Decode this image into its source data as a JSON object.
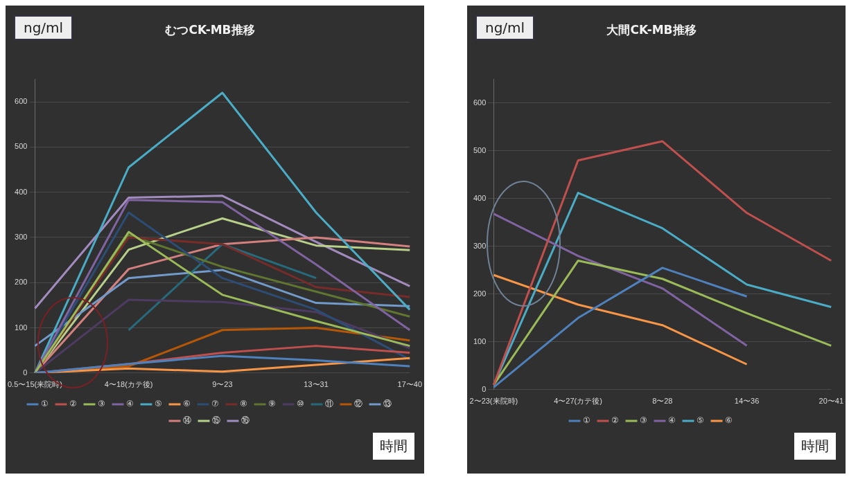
{
  "chart_data": [
    {
      "type": "line",
      "title": "むつCK-MB推移",
      "xlabel": "時間",
      "ylabel": "ng/ml",
      "categories": [
        "0.5〜15(来院時)",
        "4〜18(カテ後)",
        "9〜23",
        "13〜31",
        "17〜40"
      ],
      "ylim": [
        0,
        650
      ],
      "yticks": [
        0,
        100,
        200,
        300,
        400,
        500,
        600
      ],
      "grid": "y",
      "legend": "bottom",
      "marker": "none",
      "series": [
        {
          "name": "①",
          "color": "#4f81bd",
          "values": [
            0,
            20,
            38,
            28,
            15
          ]
        },
        {
          "name": "②",
          "color": "#c0504d",
          "values": [
            0,
            20,
            45,
            60,
            45
          ]
        },
        {
          "name": "③",
          "color": "#9bbb59",
          "values": [
            0,
            312,
            173,
            115,
            60
          ]
        },
        {
          "name": "④",
          "color": "#8064a2",
          "values": [
            0,
            383,
            378,
            240,
            95
          ]
        },
        {
          "name": "⑤",
          "color": "#4bacc6",
          "values": [
            0,
            455,
            620,
            355,
            140
          ]
        },
        {
          "name": "⑥",
          "color": "#f79646",
          "values": [
            0,
            10,
            3,
            18,
            33
          ]
        },
        {
          "name": "⑦",
          "color": "#2c4d75",
          "values": [
            0,
            355,
            210,
            140,
            30
          ]
        },
        {
          "name": "⑧",
          "color": "#772c2a",
          "values": [
            0,
            300,
            285,
            190,
            168
          ]
        },
        {
          "name": "⑨",
          "color": "#5f7530",
          "values": [
            0,
            305,
            235,
            180,
            125
          ]
        },
        {
          "name": "⑩",
          "color": "#4d3b62",
          "values": [
            0,
            162,
            157,
            135,
            55
          ]
        },
        {
          "name": "⑪",
          "color": "#276a7c",
          "values": [
            null,
            95,
            285,
            210,
            null
          ]
        },
        {
          "name": "⑫",
          "color": "#b65708",
          "values": [
            0,
            15,
            95,
            100,
            72
          ]
        },
        {
          "name": "⑬",
          "color": "#729aca",
          "values": [
            60,
            210,
            228,
            155,
            148
          ]
        },
        {
          "name": "⑭",
          "color": "#d3807e",
          "values": [
            0,
            230,
            285,
            300,
            280
          ]
        },
        {
          "name": "⑮",
          "color": "#b9d08a",
          "values": [
            0,
            273,
            342,
            282,
            272
          ]
        },
        {
          "name": "⑯",
          "color": "#a28cbf",
          "values": [
            143,
            388,
            392,
            290,
            192
          ]
        }
      ]
    },
    {
      "type": "line",
      "title": "大間CK-MB推移",
      "xlabel": "時間",
      "ylabel": "ng/ml",
      "categories": [
        "2〜23(来院時)",
        "4〜27(カテ後)",
        "8〜28",
        "14〜36",
        "20〜41"
      ],
      "ylim": [
        0,
        650
      ],
      "yticks": [
        0,
        100,
        200,
        300,
        400,
        500,
        600
      ],
      "grid": "y",
      "legend": "bottom",
      "marker": "none",
      "series": [
        {
          "name": "①",
          "color": "#4f81bd",
          "values": [
            5,
            150,
            255,
            195,
            null
          ]
        },
        {
          "name": "②",
          "color": "#c0504d",
          "values": [
            10,
            480,
            520,
            370,
            270
          ]
        },
        {
          "name": "③",
          "color": "#9bbb59",
          "values": [
            10,
            270,
            232,
            160,
            92
          ]
        },
        {
          "name": "④",
          "color": "#8064a2",
          "values": [
            368,
            280,
            212,
            92,
            null
          ]
        },
        {
          "name": "⑤",
          "color": "#4bacc6",
          "values": [
            10,
            412,
            338,
            220,
            173
          ]
        },
        {
          "name": "⑥",
          "color": "#f79646",
          "values": [
            240,
            178,
            135,
            53,
            null
          ]
        }
      ]
    }
  ]
}
